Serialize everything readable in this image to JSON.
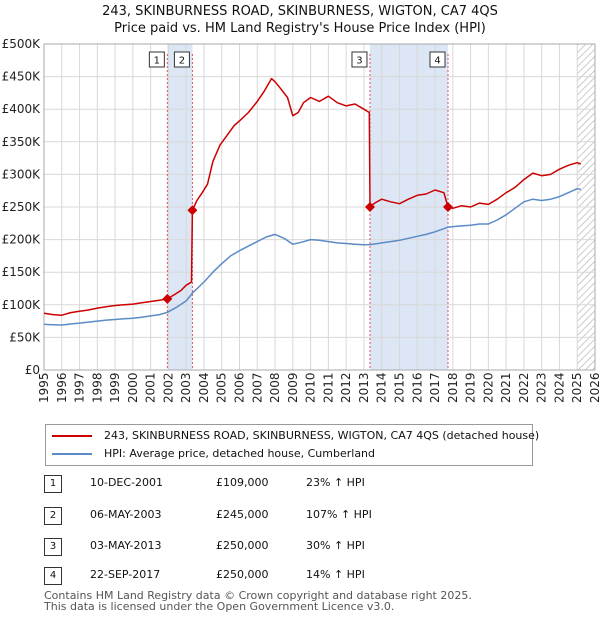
{
  "header": {
    "title": "243, SKINBURNESS ROAD, SKINBURNESS, WIGTON, CA7 4QS",
    "subtitle": "Price paid vs. HM Land Registry's House Price Index (HPI)"
  },
  "colors": {
    "price_line": "#cc0000",
    "hpi_line": "#5b8bc7",
    "shade": "#dce6f5",
    "vline": "#e05555",
    "grid": "#d8d8d8"
  },
  "chart_data": {
    "type": "line",
    "xlim": [
      1995,
      2026
    ],
    "ylim": [
      0,
      500000
    ],
    "grid": true,
    "y_ticks": [
      {
        "value": 0,
        "label": "£0"
      },
      {
        "value": 50000,
        "label": "£50K"
      },
      {
        "value": 100000,
        "label": "£100K"
      },
      {
        "value": 150000,
        "label": "£150K"
      },
      {
        "value": 200000,
        "label": "£200K"
      },
      {
        "value": 250000,
        "label": "£250K"
      },
      {
        "value": 300000,
        "label": "£300K"
      },
      {
        "value": 350000,
        "label": "£350K"
      },
      {
        "value": 400000,
        "label": "£400K"
      },
      {
        "value": 450000,
        "label": "£450K"
      },
      {
        "value": 500000,
        "label": "£500K"
      }
    ],
    "x_ticks": [
      "1995",
      "1996",
      "1997",
      "1998",
      "1999",
      "2000",
      "2001",
      "2002",
      "2003",
      "2004",
      "2005",
      "2006",
      "2007",
      "2008",
      "2009",
      "2010",
      "2011",
      "2012",
      "2013",
      "2014",
      "2015",
      "2016",
      "2017",
      "2018",
      "2019",
      "2020",
      "2021",
      "2022",
      "2023",
      "2024",
      "2025",
      "2026"
    ],
    "shaded_ranges": [
      [
        2001.94,
        2003.35
      ],
      [
        2013.34,
        2017.73
      ]
    ],
    "projection_start": 2025.0,
    "series": [
      {
        "name": "243, SKINBURNESS ROAD, SKINBURNESS, WIGTON, CA7 4QS (detached house)",
        "points": [
          [
            1995.0,
            87000
          ],
          [
            1995.5,
            85000
          ],
          [
            1996.0,
            84000
          ],
          [
            1996.5,
            88000
          ],
          [
            1997.0,
            90000
          ],
          [
            1997.5,
            92000
          ],
          [
            1998.0,
            95000
          ],
          [
            1998.5,
            97000
          ],
          [
            1999.0,
            99000
          ],
          [
            1999.5,
            100000
          ],
          [
            2000.0,
            101000
          ],
          [
            2000.5,
            103000
          ],
          [
            2001.0,
            105000
          ],
          [
            2001.5,
            107000
          ],
          [
            2001.94,
            109000
          ],
          [
            2002.3,
            115000
          ],
          [
            2002.7,
            122000
          ],
          [
            2003.0,
            130000
          ],
          [
            2003.3,
            135000
          ],
          [
            2003.35,
            245000
          ],
          [
            2003.6,
            260000
          ],
          [
            2003.9,
            272000
          ],
          [
            2004.2,
            285000
          ],
          [
            2004.5,
            320000
          ],
          [
            2004.9,
            345000
          ],
          [
            2005.3,
            360000
          ],
          [
            2005.7,
            375000
          ],
          [
            2006.0,
            382000
          ],
          [
            2006.5,
            395000
          ],
          [
            2007.0,
            412000
          ],
          [
            2007.4,
            428000
          ],
          [
            2007.8,
            447000
          ],
          [
            2008.0,
            442000
          ],
          [
            2008.3,
            432000
          ],
          [
            2008.7,
            418000
          ],
          [
            2009.0,
            390000
          ],
          [
            2009.3,
            395000
          ],
          [
            2009.6,
            410000
          ],
          [
            2010.0,
            418000
          ],
          [
            2010.5,
            412000
          ],
          [
            2011.0,
            420000
          ],
          [
            2011.5,
            410000
          ],
          [
            2012.0,
            405000
          ],
          [
            2012.5,
            408000
          ],
          [
            2013.0,
            400000
          ],
          [
            2013.3,
            395000
          ],
          [
            2013.34,
            250000
          ],
          [
            2013.6,
            256000
          ],
          [
            2014.0,
            262000
          ],
          [
            2014.5,
            258000
          ],
          [
            2015.0,
            255000
          ],
          [
            2015.5,
            262000
          ],
          [
            2016.0,
            268000
          ],
          [
            2016.5,
            270000
          ],
          [
            2017.0,
            276000
          ],
          [
            2017.5,
            272000
          ],
          [
            2017.73,
            250000
          ],
          [
            2018.0,
            248000
          ],
          [
            2018.5,
            252000
          ],
          [
            2019.0,
            250000
          ],
          [
            2019.5,
            256000
          ],
          [
            2020.0,
            254000
          ],
          [
            2020.5,
            262000
          ],
          [
            2021.0,
            272000
          ],
          [
            2021.5,
            280000
          ],
          [
            2022.0,
            292000
          ],
          [
            2022.5,
            302000
          ],
          [
            2023.0,
            298000
          ],
          [
            2023.5,
            300000
          ],
          [
            2024.0,
            308000
          ],
          [
            2024.5,
            314000
          ],
          [
            2025.0,
            318000
          ],
          [
            2025.2,
            316000
          ]
        ]
      },
      {
        "name": "HPI: Average price, detached house, Cumberland",
        "points": [
          [
            1995.0,
            70000
          ],
          [
            1995.5,
            69500
          ],
          [
            1996.0,
            69000
          ],
          [
            1996.5,
            70500
          ],
          [
            1997.0,
            72000
          ],
          [
            1997.5,
            73500
          ],
          [
            1998.0,
            75000
          ],
          [
            1998.5,
            76500
          ],
          [
            1999.0,
            77500
          ],
          [
            1999.5,
            78500
          ],
          [
            2000.0,
            79500
          ],
          [
            2000.5,
            81000
          ],
          [
            2001.0,
            83000
          ],
          [
            2001.5,
            85000
          ],
          [
            2001.94,
            88500
          ],
          [
            2002.5,
            97000
          ],
          [
            2003.0,
            106000
          ],
          [
            2003.35,
            118000
          ],
          [
            2004.0,
            135000
          ],
          [
            2004.5,
            150000
          ],
          [
            2005.0,
            163000
          ],
          [
            2005.5,
            175000
          ],
          [
            2006.0,
            183000
          ],
          [
            2006.5,
            190000
          ],
          [
            2007.0,
            197000
          ],
          [
            2007.5,
            204000
          ],
          [
            2008.0,
            208000
          ],
          [
            2008.5,
            202000
          ],
          [
            2009.0,
            193000
          ],
          [
            2009.5,
            196000
          ],
          [
            2010.0,
            200000
          ],
          [
            2010.5,
            199000
          ],
          [
            2011.0,
            197000
          ],
          [
            2011.5,
            195000
          ],
          [
            2012.0,
            194000
          ],
          [
            2012.5,
            193000
          ],
          [
            2013.0,
            192000
          ],
          [
            2013.34,
            192300
          ],
          [
            2013.8,
            194000
          ],
          [
            2014.0,
            195000
          ],
          [
            2014.5,
            197000
          ],
          [
            2015.0,
            199000
          ],
          [
            2015.5,
            202000
          ],
          [
            2016.0,
            205000
          ],
          [
            2016.5,
            208000
          ],
          [
            2017.0,
            212000
          ],
          [
            2017.73,
            219000
          ],
          [
            2018.0,
            220000
          ],
          [
            2018.5,
            221000
          ],
          [
            2019.0,
            222000
          ],
          [
            2019.5,
            224000
          ],
          [
            2020.0,
            224000
          ],
          [
            2020.5,
            230000
          ],
          [
            2021.0,
            238000
          ],
          [
            2021.5,
            248000
          ],
          [
            2022.0,
            258000
          ],
          [
            2022.5,
            262000
          ],
          [
            2023.0,
            260000
          ],
          [
            2023.5,
            262000
          ],
          [
            2024.0,
            266000
          ],
          [
            2024.5,
            272000
          ],
          [
            2025.0,
            278000
          ],
          [
            2025.2,
            277000
          ]
        ]
      }
    ],
    "sales": [
      {
        "label": "1",
        "x": 2001.94,
        "y": 109000
      },
      {
        "label": "2",
        "x": 2003.35,
        "y": 245000
      },
      {
        "label": "3",
        "x": 2013.34,
        "y": 250000
      },
      {
        "label": "4",
        "x": 2017.73,
        "y": 250000
      }
    ]
  },
  "legend": {
    "items": [
      {
        "label": "243, SKINBURNESS ROAD, SKINBURNESS, WIGTON, CA7 4QS (detached house)"
      },
      {
        "label": "HPI: Average price, detached house, Cumberland"
      }
    ]
  },
  "transactions": [
    {
      "num": "1",
      "date": "10-DEC-2001",
      "price": "£109,000",
      "hpi": "23% ↑ HPI"
    },
    {
      "num": "2",
      "date": "06-MAY-2003",
      "price": "£245,000",
      "hpi": "107% ↑ HPI"
    },
    {
      "num": "3",
      "date": "03-MAY-2013",
      "price": "£250,000",
      "hpi": "30% ↑ HPI"
    },
    {
      "num": "4",
      "date": "22-SEP-2017",
      "price": "£250,000",
      "hpi": "14% ↑ HPI"
    }
  ],
  "footer": {
    "line1": "Contains HM Land Registry data © Crown copyright and database right 2025.",
    "line2": "This data is licensed under the Open Government Licence v3.0."
  }
}
